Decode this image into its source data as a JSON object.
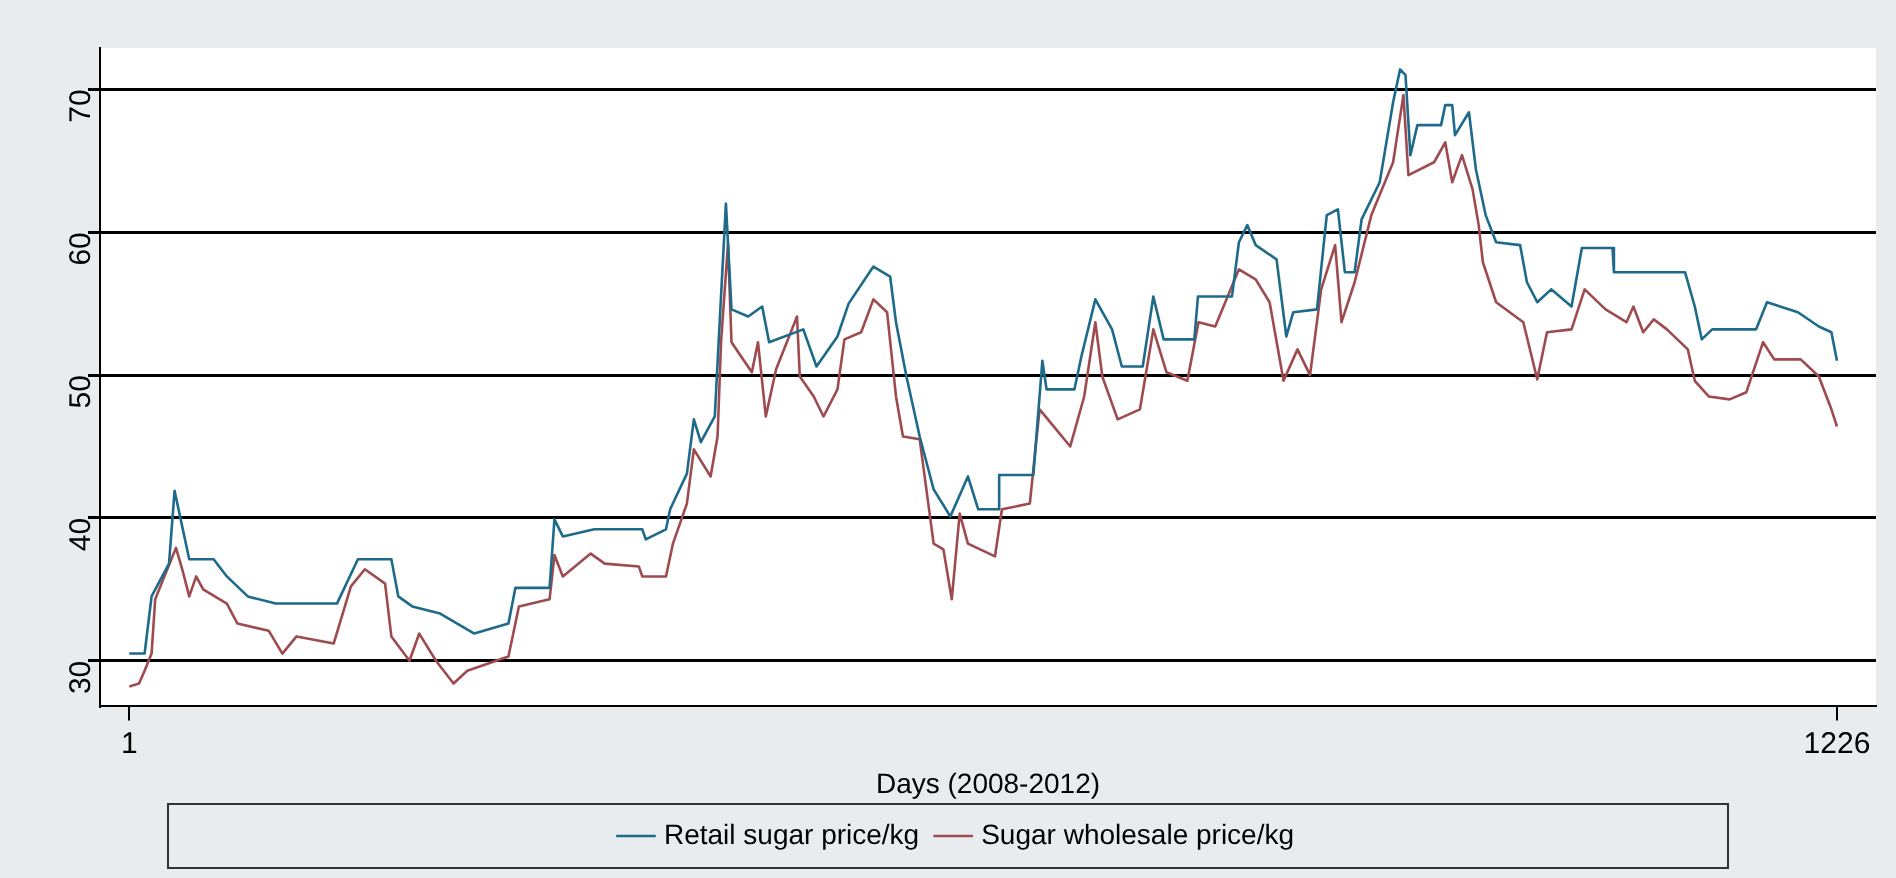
{
  "chart_data": {
    "type": "line",
    "xlabel": "Days (2008-2012)",
    "xlim": [
      -20,
      1254
    ],
    "xticks": [
      1,
      1226
    ],
    "ylim": [
      26.8,
      72.9
    ],
    "yticks": [
      30,
      40,
      50,
      60,
      70
    ],
    "grid": "y",
    "legend": "bottom",
    "marker": "none",
    "line_style": "solid",
    "series": [
      {
        "name": "Retail sugar price/kg",
        "color": "#1d6a8a",
        "x": [
          1,
          12,
          17,
          29.5,
          33.5,
          39.4,
          44,
          61.5,
          71,
          86,
          106,
          150,
          165,
          189,
          194,
          204,
          224,
          248.5,
          273,
          278,
          302.5,
          306,
          312,
          334.6,
          369,
          371.5,
          386,
          389,
          401,
          406,
          411,
          421,
          425,
          429,
          433,
          445,
          455,
          460,
          484.5,
          494,
          509,
          517,
          534.8,
          546.8,
          551,
          558.5,
          568,
          578,
          590,
          602.6,
          610,
          625,
          625,
          649.5,
          656,
          659,
          679,
          684,
          694,
          706,
          713,
          728,
          735.6,
          743,
          765,
          767.6,
          792,
          797,
          803,
          809,
          824,
          831,
          836,
          853,
          860,
          868,
          873,
          880,
          885,
          898,
          907.6,
          912.6,
          916.5,
          920,
          925,
          942,
          945,
          950,
          952,
          962,
          967,
          974,
          981.5,
          998.7,
          1003.6,
          1011,
          1021,
          1035.6,
          1043,
          1065,
          1066,
          1117,
          1124,
          1129,
          1136.5,
          1168,
          1175.8,
          1198,
          1213,
          1222,
          1226
        ],
        "values": [
          30.5,
          30.5,
          34.5,
          36.8,
          41.9,
          39.2,
          37.1,
          37.1,
          35.9,
          34.5,
          34.0,
          34.0,
          37.1,
          37.1,
          34.5,
          33.8,
          33.3,
          31.9,
          32.6,
          35.1,
          35.1,
          39.9,
          38.7,
          39.2,
          39.2,
          38.5,
          39.2,
          40.6,
          43.1,
          46.9,
          45.3,
          47.1,
          54.6,
          62.0,
          54.6,
          54.1,
          54.8,
          52.3,
          53.2,
          50.6,
          52.7,
          55.0,
          57.6,
          56.9,
          53.7,
          49.9,
          45.7,
          42.0,
          40.1,
          42.9,
          40.6,
          40.6,
          43.0,
          43.0,
          51.0,
          49.0,
          49.0,
          51.3,
          55.3,
          53.2,
          50.6,
          50.6,
          55.5,
          52.5,
          52.5,
          55.5,
          55.5,
          59.3,
          60.5,
          59.1,
          58.1,
          52.7,
          54.4,
          54.6,
          61.2,
          61.6,
          57.2,
          57.2,
          60.9,
          63.5,
          69.1,
          71.4,
          71.0,
          65.4,
          67.5,
          67.5,
          68.9,
          68.9,
          66.8,
          68.4,
          64.4,
          61.2,
          59.3,
          59.1,
          56.5,
          55.1,
          56.0,
          54.8,
          58.9,
          58.9,
          57.2,
          57.2,
          54.8,
          52.5,
          53.2,
          53.2,
          55.1,
          54.4,
          53.4,
          53.0,
          51.0
        ]
      },
      {
        "name": "Sugar wholesale price/kg",
        "color": "#9e4b4f",
        "x": [
          1,
          8,
          12,
          17,
          19.6,
          34.5,
          39,
          44,
          49,
          54,
          71,
          78.6,
          101,
          110.8,
          121,
          147.6,
          160,
          170,
          184.5,
          189,
          202,
          209,
          221,
          233.6,
          243.5,
          273,
          280.5,
          302.5,
          306,
          312,
          332,
          342,
          366.5,
          369,
          386,
          391,
          401,
          406,
          418,
          423,
          425.5,
          430.5,
          433,
          447.6,
          452,
          457.6,
          465,
          480,
          482,
          492,
          499,
          509,
          514,
          526,
          534.8,
          544.6,
          551,
          556,
          568,
          578,
          585,
          591,
          596.7,
          602.6,
          622,
          627,
          647,
          654,
          661.6,
          676,
          686,
          694,
          699,
          710,
          726,
          735.6,
          745,
          760,
          768,
          780,
          797,
          809,
          819,
          829,
          839,
          848,
          856,
          866,
          870.6,
          880,
          892,
          907.6,
          915,
          918.6,
          937,
          945,
          950,
          957,
          964.6,
          969,
          972,
          981.5,
          1001,
          1011,
          1018,
          1035.6,
          1045,
          1060,
          1075,
          1080,
          1087,
          1094.6,
          1104,
          1119,
          1124,
          1134,
          1149,
          1161,
          1173,
          1181,
          1200,
          1213,
          1222,
          1226
        ],
        "values": [
          28.2,
          28.4,
          29.3,
          30.5,
          34.3,
          37.9,
          36.4,
          34.5,
          35.9,
          35.0,
          34.0,
          32.6,
          32.1,
          30.5,
          31.7,
          31.2,
          35.2,
          36.4,
          35.4,
          31.7,
          30.0,
          31.9,
          30.0,
          28.4,
          29.3,
          30.3,
          33.8,
          34.3,
          37.4,
          35.9,
          37.5,
          36.8,
          36.6,
          35.9,
          35.9,
          38.2,
          41.0,
          44.8,
          42.9,
          45.7,
          52.3,
          59.2,
          52.3,
          50.2,
          52.3,
          47.1,
          50.4,
          54.1,
          49.9,
          48.5,
          47.1,
          49.0,
          52.5,
          53.0,
          55.3,
          54.4,
          48.5,
          45.7,
          45.5,
          38.2,
          37.8,
          34.3,
          40.3,
          38.2,
          37.3,
          40.6,
          41.0,
          47.6,
          46.7,
          45.0,
          48.5,
          53.7,
          49.9,
          46.9,
          47.6,
          53.2,
          50.2,
          49.6,
          53.7,
          53.4,
          57.4,
          56.7,
          55.1,
          49.6,
          51.8,
          50.0,
          56.0,
          59.1,
          53.7,
          56.5,
          61.2,
          64.9,
          69.6,
          64.0,
          64.9,
          66.3,
          63.5,
          65.4,
          63.0,
          60.5,
          57.9,
          55.1,
          53.7,
          49.7,
          53.0,
          53.2,
          56.0,
          54.6,
          53.7,
          54.8,
          53.0,
          53.9,
          53.2,
          51.8,
          49.6,
          48.5,
          48.3,
          48.8,
          52.3,
          51.1,
          51.1,
          49.9,
          47.6,
          46.4
        ]
      }
    ]
  }
}
